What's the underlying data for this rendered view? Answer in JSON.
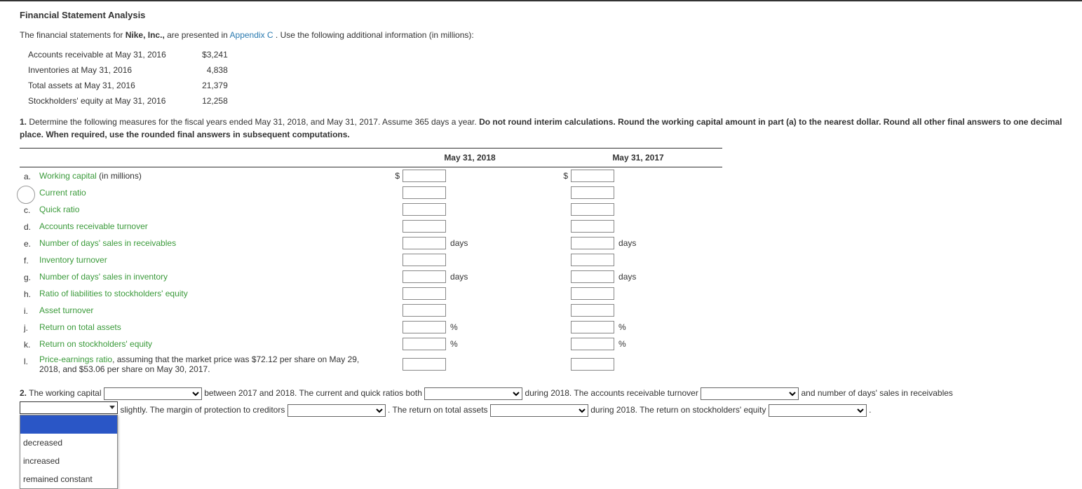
{
  "title": "Financial Statement Analysis",
  "intro_pre": "The financial statements for ",
  "intro_company": "Nike, Inc.,",
  "intro_mid": " are presented in ",
  "intro_link": "Appendix C",
  "intro_post": ". Use the following additional information (in millions):",
  "info": [
    {
      "label": "Accounts receivable at May 31, 2016",
      "value": "$3,241"
    },
    {
      "label": "Inventories at May 31, 2016",
      "value": "4,838"
    },
    {
      "label": "Total assets at May 31, 2016",
      "value": "21,379"
    },
    {
      "label": "Stockholders' equity at May 31, 2016",
      "value": "12,258"
    }
  ],
  "instruction_num": "1.",
  "instruction_a": " Determine the following measures for the fiscal years ended May 31, 2018, and May 31, 2017. Assume 365 days a year. ",
  "instruction_b": "Do not round interim calculations. Round the working capital amount in part (a) to the nearest dollar. Round all other final answers to one decimal place. When required, use the rounded final answers in subsequent computations.",
  "col1": "May 31, 2018",
  "col2": "May 31, 2017",
  "rows": [
    {
      "letter": "a.",
      "link": "Working capital",
      "plain": " (in millions)",
      "prefix": "$",
      "unit": ""
    },
    {
      "letter": "b.",
      "link": "Current ratio",
      "plain": "",
      "prefix": "",
      "unit": ""
    },
    {
      "letter": "c.",
      "link": "Quick ratio",
      "plain": "",
      "prefix": "",
      "unit": ""
    },
    {
      "letter": "d.",
      "link": "Accounts receivable turnover",
      "plain": "",
      "prefix": "",
      "unit": ""
    },
    {
      "letter": "e.",
      "link": "Number of days' sales in receivables",
      "plain": "",
      "prefix": "",
      "unit": "days"
    },
    {
      "letter": "f.",
      "link": "Inventory turnover",
      "plain": "",
      "prefix": "",
      "unit": ""
    },
    {
      "letter": "g.",
      "link": "Number of days' sales in inventory",
      "plain": "",
      "prefix": "",
      "unit": "days"
    },
    {
      "letter": "h.",
      "link": "Ratio of liabilities to stockholders' equity",
      "plain": "",
      "prefix": "",
      "unit": ""
    },
    {
      "letter": "i.",
      "link": "Asset turnover",
      "plain": "",
      "prefix": "",
      "unit": ""
    },
    {
      "letter": "j.",
      "link": "Return on total assets",
      "plain": "",
      "prefix": "",
      "unit": "%"
    },
    {
      "letter": "k.",
      "link": "Return on stockholders' equity",
      "plain": "",
      "prefix": "",
      "unit": "%"
    },
    {
      "letter": "l.",
      "link": "Price-earnings ratio",
      "plain": ", assuming that the market price was $72.12 per share on May 29, 2018, and $53.06 per share on May 30, 2017.",
      "prefix": "",
      "unit": ""
    }
  ],
  "q2_num": "2.",
  "q2": {
    "a": " The working capital ",
    "b": " between 2017 and 2018. The current and quick ratios both ",
    "c": " during 2018. The accounts receivable turnover ",
    "d": " and number of days' sales in receivables ",
    "e": " slightly. The margin of protection to creditors ",
    "f": " . The return on total assets ",
    "g": " during 2018. The return on stockholders' equity ",
    "h": " ."
  },
  "dd_options": [
    "",
    "decreased",
    "increased",
    "remained constant"
  ],
  "dd_open_selected": ""
}
